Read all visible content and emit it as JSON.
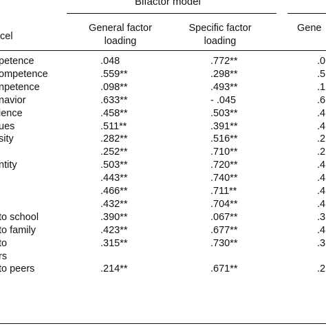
{
  "table": {
    "group_header": "Bifactor model",
    "col_parcel": "cel",
    "col_general_line1": "General factor",
    "col_general_line2": "loading",
    "col_specific_line1": "Specific factor",
    "col_specific_line2": "loading",
    "col_right_partial": "Gene",
    "rows": [
      {
        "label": "petence",
        "general": ".048",
        "specific": ".772**",
        "right": ".0"
      },
      {
        "label": "ompetence",
        "general": ".559**",
        "specific": ".298**",
        "right": ".5"
      },
      {
        "label": "npetence",
        "general": ".098**",
        "specific": ".493**",
        "right": ".1"
      },
      {
        "label": "navior",
        "general": ".633**",
        "specific": "- .045",
        "right": ".6"
      },
      {
        "label": "ience",
        "general": ".458**",
        "specific": ".503**",
        "right": ".4"
      },
      {
        "label": "ues",
        "general": ".511**",
        "specific": ".391**",
        "right": ".4"
      },
      {
        "label": "sity",
        "general": ".282**",
        "specific": ".516**",
        "right": ".2"
      },
      {
        "label": "",
        "general": ".252**",
        "specific": ".710**",
        "right": ".2"
      },
      {
        "label": "ntity",
        "general": ".503**",
        "specific": ".720**",
        "right": ".4"
      },
      {
        "label": "",
        "general": ".443**",
        "specific": ".740**",
        "right": ".4"
      },
      {
        "label": "",
        "general": ".466**",
        "specific": ".711**",
        "right": ".4"
      },
      {
        "label": "",
        "general": ".432**",
        "specific": ".704**",
        "right": ".4"
      },
      {
        "label": "to school",
        "general": ".390**",
        "specific": ".067**",
        "right": ".3"
      },
      {
        "label": "to family",
        "general": ".423**",
        "specific": ".677**",
        "right": ".4"
      },
      {
        "label": "to",
        "general": ".315**",
        "specific": ".730**",
        "right": ".3"
      },
      {
        "label": "rs",
        "general": "",
        "specific": "",
        "right": ""
      },
      {
        "label": "to peers",
        "general": ".214**",
        "specific": ".671**",
        "right": ".2"
      }
    ]
  }
}
